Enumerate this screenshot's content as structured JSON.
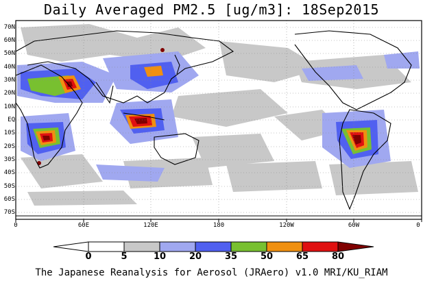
{
  "title": "Daily Averaged PM2.5 [ug/m3]: 18Sep2015",
  "credit": "The Japanese Reanalysis for Aerosol (JRAero) v1.0 MRI/KU_RIAM",
  "lat_labels": [
    "70N",
    "60N",
    "50N",
    "40N",
    "30N",
    "20N",
    "10N",
    "EQ",
    "10S",
    "20S",
    "30S",
    "40S",
    "50S",
    "60S",
    "70S"
  ],
  "lon_labels": [
    "0",
    "60E",
    "120E",
    "180",
    "120W",
    "60W",
    "0"
  ],
  "colorbar": {
    "labels": [
      "0",
      "5",
      "10",
      "20",
      "35",
      "50",
      "65",
      "80"
    ],
    "colors": [
      "#ffffff",
      "#c8c8c8",
      "#a0a8f0",
      "#5060f0",
      "#78c030",
      "#f09010",
      "#e01010",
      "#800000"
    ]
  }
}
